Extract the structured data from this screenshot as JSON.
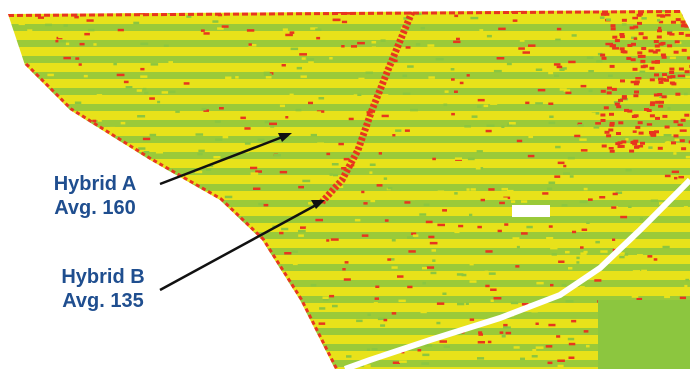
{
  "map": {
    "colors": {
      "high": "#8cc63f",
      "mid": "#e8e21a",
      "low": "#e8351e",
      "background": "#ffffff",
      "label": "#1f4e8f",
      "arrow": "#111111"
    }
  },
  "callouts": [
    {
      "hybrid": "Hybrid A",
      "average": "Avg. 160"
    },
    {
      "hybrid": "Hybrid B",
      "average": "Avg. 135"
    }
  ]
}
